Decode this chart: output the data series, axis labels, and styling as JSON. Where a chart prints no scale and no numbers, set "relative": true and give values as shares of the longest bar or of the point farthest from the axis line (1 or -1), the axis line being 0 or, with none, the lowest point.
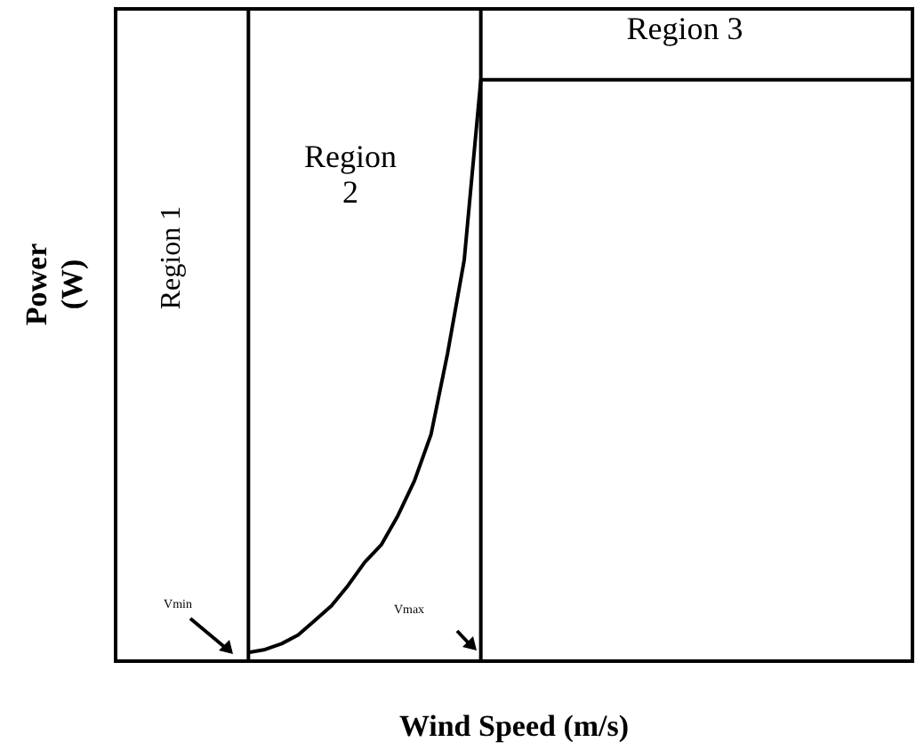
{
  "chart_data": {
    "type": "line",
    "relative": true,
    "xlabel": "Wind Speed (m/s)",
    "ylabel": "Power (W)",
    "marker": "none",
    "line_style": "solid",
    "categories": [
      null,
      null,
      null,
      null,
      null,
      null,
      null,
      null,
      null,
      null,
      null,
      null,
      null,
      null,
      null,
      null,
      null,
      null,
      null,
      null,
      null,
      null,
      null,
      null,
      null,
      null,
      null,
      null,
      null,
      null,
      null,
      null,
      null,
      null,
      null,
      null,
      null,
      null,
      null,
      null,
      null,
      null,
      null,
      null,
      null,
      null,
      null,
      null,
      null
    ],
    "series": [
      {
        "color": "#000000",
        "values": [
          null,
          null,
          null,
          null,
          null,
          null,
          null,
          null,
          0.015,
          0.02,
          0.03,
          0.045,
          0.07,
          0.095,
          0.13,
          0.17,
          0.2,
          0.25,
          0.31,
          0.39,
          0.53,
          0.69,
          1,
          1,
          1,
          1,
          1,
          1,
          1,
          1,
          1,
          1,
          1,
          1,
          1,
          1,
          1,
          1,
          1,
          1,
          1,
          1,
          1,
          1,
          1,
          1,
          1,
          1,
          1
        ]
      }
    ],
    "annotations": [
      "Region 1",
      "Region 2",
      "Region 3",
      "Vmin",
      "Vmax"
    ]
  }
}
